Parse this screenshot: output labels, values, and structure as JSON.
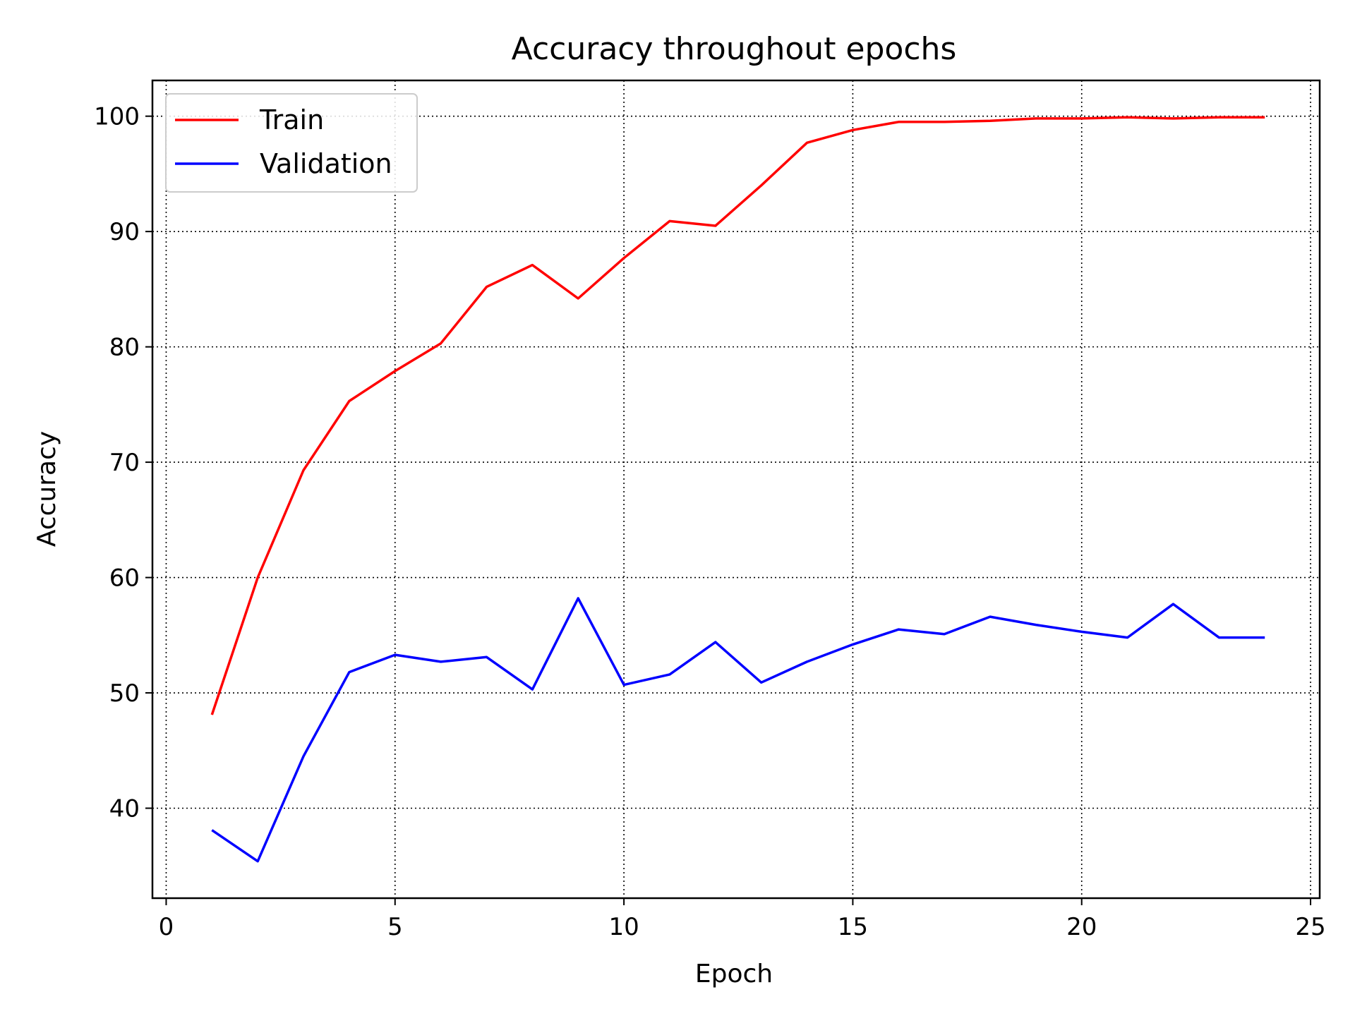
{
  "chart_data": {
    "type": "line",
    "title": "Accuracy throughout epochs",
    "xlabel": "Epoch",
    "ylabel": "Accuracy",
    "xlim": [
      -0.3,
      25.2
    ],
    "ylim": [
      32.2,
      103.1
    ],
    "xticks": [
      0,
      5,
      10,
      15,
      20,
      25
    ],
    "yticks": [
      40,
      50,
      60,
      70,
      80,
      90,
      100
    ],
    "grid": true,
    "legend_position": "upper-left",
    "x": [
      1,
      2,
      3,
      4,
      5,
      6,
      7,
      8,
      9,
      10,
      11,
      12,
      13,
      14,
      15,
      16,
      17,
      18,
      19,
      20,
      21,
      22,
      23,
      24
    ],
    "series": [
      {
        "name": "Train",
        "color": "#ff0000",
        "values": [
          48.1,
          60.0,
          69.3,
          75.3,
          77.9,
          80.3,
          85.2,
          87.1,
          84.2,
          87.7,
          90.9,
          90.5,
          94.0,
          97.7,
          98.8,
          99.5,
          99.5,
          99.6,
          99.8,
          99.8,
          99.9,
          99.8,
          99.9,
          99.9
        ]
      },
      {
        "name": "Validation",
        "color": "#0000ff",
        "values": [
          38.1,
          35.4,
          44.5,
          51.8,
          53.3,
          52.7,
          53.1,
          50.3,
          58.2,
          50.7,
          51.6,
          54.4,
          50.9,
          52.7,
          54.2,
          55.5,
          55.1,
          56.6,
          55.9,
          55.3,
          54.8,
          57.7,
          54.8,
          54.8
        ]
      }
    ]
  }
}
